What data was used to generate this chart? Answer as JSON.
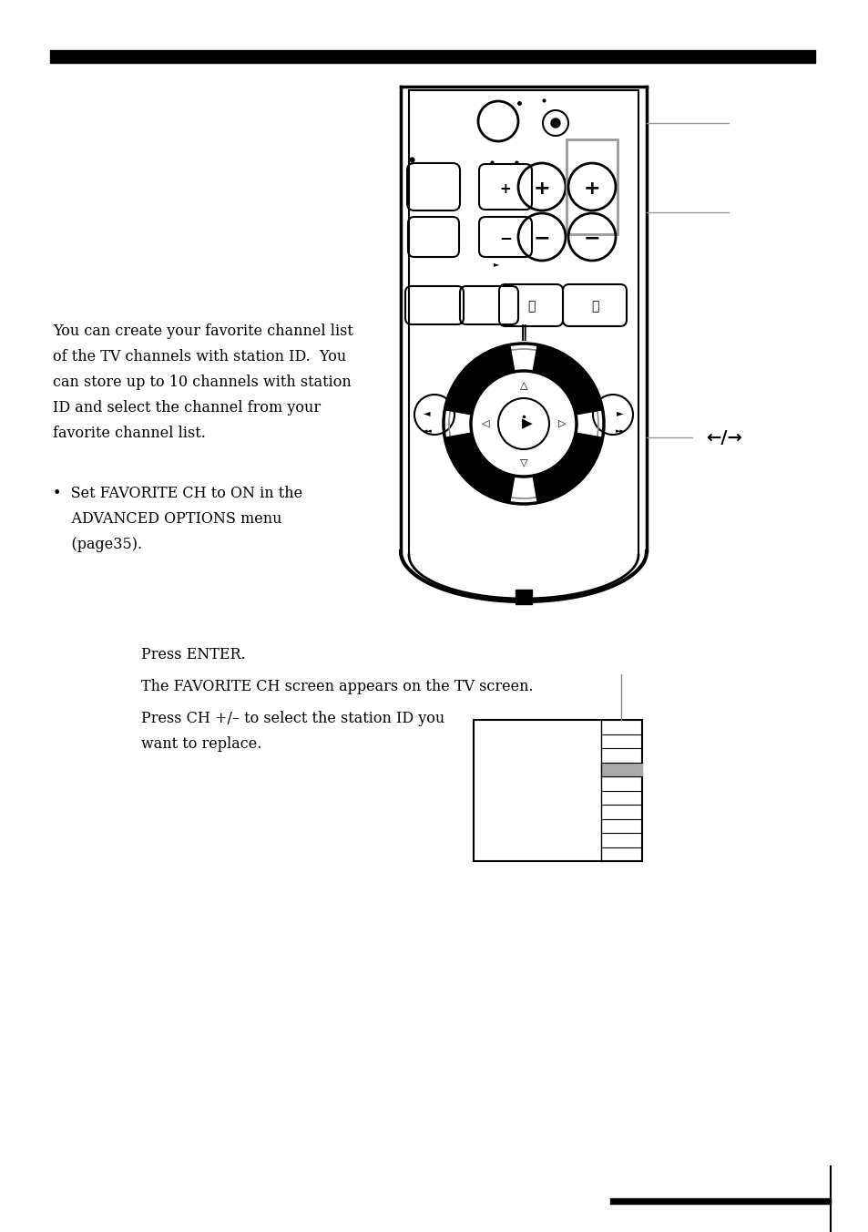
{
  "bg_color": "#ffffff",
  "body_text": [
    "You can create your favorite channel list",
    "of the TV channels with station ID.  You",
    "can store up to 10 channels with station",
    "ID and select the channel from your",
    "favorite channel list."
  ],
  "bullet_lines": [
    "•  Set FAVORITE CH to ON in the",
    "    ADVANCED OPTIONS menu",
    "    (page35)."
  ],
  "press_enter": "Press ENTER.",
  "fav_ch_line": "The FAVORITE CH screen appears on the TV screen.",
  "press_ch_lines": [
    "Press CH +/– to select the station ID you",
    "want to replace."
  ],
  "font_size": 11.5,
  "font_family": "serif"
}
